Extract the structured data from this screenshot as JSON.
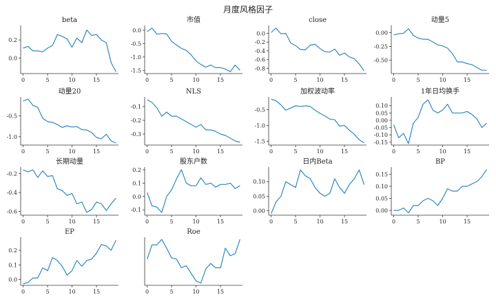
{
  "title": "月度风格因子",
  "series_color": "#2e86c1",
  "chart_data": [
    {
      "type": "line",
      "title": "beta",
      "x": [
        0,
        1,
        2,
        3,
        4,
        5,
        6,
        7,
        8,
        9,
        10,
        11,
        12,
        13,
        14,
        15,
        16,
        17,
        18,
        19
      ],
      "values": [
        0.11,
        0.13,
        0.08,
        0.08,
        0.07,
        0.11,
        0.14,
        0.26,
        0.24,
        0.21,
        0.12,
        0.22,
        0.17,
        0.31,
        0.25,
        0.26,
        0.2,
        0.17,
        -0.05,
        -0.15
      ],
      "yticks": [
        0.0,
        0.2
      ],
      "xticks": [
        0,
        5,
        10,
        15
      ],
      "ylim": [
        -0.17,
        0.36
      ],
      "xlim": [
        -0.5,
        19.5
      ]
    },
    {
      "type": "line",
      "title": "市值",
      "x": [
        0,
        1,
        2,
        3,
        4,
        5,
        6,
        7,
        8,
        9,
        10,
        11,
        12,
        13,
        14,
        15,
        16,
        17,
        18,
        19
      ],
      "values": [
        -0.05,
        0.08,
        -0.15,
        -0.12,
        -0.14,
        -0.42,
        -0.55,
        -0.68,
        -0.75,
        -0.92,
        -1.15,
        -1.28,
        -1.38,
        -1.3,
        -1.4,
        -1.4,
        -1.45,
        -1.55,
        -1.3,
        -1.5
      ],
      "yticks": [
        0.0,
        -0.5,
        -1.0,
        -1.5
      ],
      "xticks": [
        0,
        5,
        10,
        15
      ],
      "ylim": [
        -1.62,
        0.18
      ],
      "xlim": [
        -0.5,
        19.5
      ]
    },
    {
      "type": "line",
      "title": "close",
      "x": [
        0,
        1,
        2,
        3,
        4,
        5,
        6,
        7,
        8,
        9,
        10,
        11,
        12,
        13,
        14,
        15,
        16,
        17,
        18,
        19
      ],
      "values": [
        0.02,
        0.12,
        -0.01,
        0.0,
        -0.22,
        -0.28,
        -0.37,
        -0.38,
        -0.27,
        -0.25,
        -0.35,
        -0.42,
        -0.43,
        -0.36,
        -0.5,
        -0.45,
        -0.54,
        -0.58,
        -0.7,
        -0.86
      ],
      "yticks": [
        0.0,
        -0.2,
        -0.4,
        -0.6,
        -0.8
      ],
      "xticks": [
        0,
        5,
        10,
        15
      ],
      "ylim": [
        -0.92,
        0.18
      ],
      "xlim": [
        -0.5,
        19.5
      ]
    },
    {
      "type": "line",
      "title": "动量5",
      "x": [
        0,
        1,
        2,
        3,
        4,
        5,
        6,
        7,
        8,
        9,
        10,
        11,
        12,
        13,
        14,
        15,
        16,
        17,
        18,
        19
      ],
      "values": [
        -0.04,
        -0.02,
        -0.01,
        0.07,
        -0.05,
        -0.1,
        -0.12,
        -0.12,
        -0.17,
        -0.22,
        -0.24,
        -0.28,
        -0.38,
        -0.53,
        -0.53,
        -0.56,
        -0.58,
        -0.63,
        -0.68,
        -0.68
      ],
      "yticks": [
        0.0,
        -0.25,
        -0.5
      ],
      "xticks": [
        0,
        5,
        10,
        15
      ],
      "ylim": [
        -0.74,
        0.13
      ],
      "xlim": [
        -0.5,
        19.5
      ]
    },
    {
      "type": "line",
      "title": "动量20",
      "x": [
        0,
        1,
        2,
        3,
        4,
        5,
        6,
        7,
        8,
        9,
        10,
        11,
        12,
        13,
        14,
        15,
        16,
        17,
        18,
        19
      ],
      "values": [
        -0.15,
        -0.1,
        -0.25,
        -0.3,
        -0.56,
        -0.64,
        -0.66,
        -0.71,
        -0.78,
        -0.74,
        -0.77,
        -0.76,
        -0.83,
        -0.84,
        -0.9,
        -1.02,
        -1.05,
        -0.94,
        -1.1,
        -1.15
      ],
      "yticks": [
        -0.5,
        -1.0
      ],
      "xticks": [
        0,
        5,
        10,
        15
      ],
      "ylim": [
        -1.2,
        -0.05
      ],
      "xlim": [
        -0.5,
        19.5
      ]
    },
    {
      "type": "line",
      "title": "NLS",
      "x": [
        0,
        1,
        2,
        3,
        4,
        5,
        6,
        7,
        8,
        9,
        10,
        11,
        12,
        13,
        14,
        15,
        16,
        17,
        18,
        19
      ],
      "values": [
        -0.05,
        -0.07,
        -0.11,
        -0.17,
        -0.14,
        -0.17,
        -0.17,
        -0.19,
        -0.21,
        -0.23,
        -0.25,
        -0.23,
        -0.27,
        -0.27,
        -0.28,
        -0.3,
        -0.31,
        -0.33,
        -0.35,
        -0.36
      ],
      "yticks": [
        -0.1,
        -0.2,
        -0.3
      ],
      "xticks": [
        0,
        5,
        10,
        15
      ],
      "ylim": [
        -0.38,
        -0.03
      ],
      "xlim": [
        -0.5,
        19.5
      ]
    },
    {
      "type": "line",
      "title": "加权波动率",
      "x": [
        0,
        1,
        2,
        3,
        4,
        5,
        6,
        7,
        8,
        9,
        10,
        11,
        12,
        13,
        14,
        15,
        16,
        17,
        18,
        19
      ],
      "values": [
        -0.17,
        -0.22,
        -0.35,
        -0.52,
        -0.45,
        -0.38,
        -0.4,
        -0.38,
        -0.4,
        -0.52,
        -0.62,
        -0.7,
        -0.8,
        -0.82,
        -1.02,
        -1.0,
        -1.15,
        -1.28,
        -1.45,
        -1.55
      ],
      "yticks": [
        -0.5,
        -1.0,
        -1.5
      ],
      "xticks": [
        0,
        5,
        10,
        15
      ],
      "ylim": [
        -1.62,
        -0.1
      ],
      "xlim": [
        -0.5,
        19.5
      ]
    },
    {
      "type": "line",
      "title": "1年日均换手",
      "x": [
        0,
        1,
        2,
        3,
        4,
        5,
        6,
        7,
        8,
        9,
        10,
        11,
        12,
        13,
        14,
        15,
        16,
        17,
        18,
        19
      ],
      "values": [
        -0.03,
        -0.12,
        -0.09,
        -0.16,
        -0.02,
        0.02,
        0.11,
        0.14,
        0.07,
        0.05,
        0.07,
        0.11,
        0.05,
        0.05,
        0.05,
        0.06,
        0.04,
        0.01,
        -0.05,
        -0.02
      ],
      "yticks": [
        0.1,
        0.05,
        0.0,
        -0.05,
        -0.1,
        -0.15
      ],
      "xticks": [
        0,
        5,
        10,
        15
      ],
      "ylim": [
        -0.17,
        0.16
      ],
      "xlim": [
        -0.5,
        19.5
      ]
    },
    {
      "type": "line",
      "title": "长期动量",
      "x": [
        0,
        1,
        2,
        3,
        4,
        5,
        6,
        7,
        8,
        9,
        10,
        11,
        12,
        13,
        14,
        15,
        16,
        17,
        18,
        19
      ],
      "values": [
        -0.16,
        -0.18,
        -0.16,
        -0.24,
        -0.17,
        -0.23,
        -0.22,
        -0.36,
        -0.38,
        -0.43,
        -0.41,
        -0.52,
        -0.5,
        -0.61,
        -0.58,
        -0.5,
        -0.52,
        -0.59,
        -0.52,
        -0.46
      ],
      "yticks": [
        -0.2,
        -0.4,
        -0.6
      ],
      "xticks": [
        0,
        5,
        10,
        15
      ],
      "ylim": [
        -0.64,
        -0.13
      ],
      "xlim": [
        -0.5,
        19.5
      ]
    },
    {
      "type": "line",
      "title": "股东户数",
      "x": [
        0,
        1,
        2,
        3,
        4,
        5,
        6,
        7,
        8,
        9,
        10,
        11,
        12,
        13,
        14,
        15,
        16,
        17,
        18,
        19
      ],
      "values": [
        0.03,
        -0.07,
        -0.08,
        -0.12,
        0.0,
        0.05,
        0.13,
        0.2,
        0.1,
        0.08,
        0.08,
        0.14,
        0.09,
        0.1,
        0.07,
        0.09,
        0.09,
        0.1,
        0.06,
        0.08
      ],
      "yticks": [
        0.2,
        0.1,
        0.0,
        -0.1
      ],
      "xticks": [
        0,
        5,
        10,
        15
      ],
      "ylim": [
        -0.14,
        0.22
      ],
      "xlim": [
        -0.5,
        19.5
      ]
    },
    {
      "type": "line",
      "title": "日内Beta",
      "x": [
        0,
        1,
        2,
        3,
        4,
        5,
        6,
        7,
        8,
        9,
        10,
        11,
        12,
        13,
        14,
        15,
        16,
        17,
        18,
        19
      ],
      "values": [
        -0.01,
        0.03,
        0.05,
        0.1,
        0.09,
        0.08,
        0.14,
        0.12,
        0.11,
        0.08,
        0.06,
        0.05,
        0.06,
        0.11,
        0.08,
        0.06,
        0.09,
        0.11,
        0.14,
        0.09
      ],
      "yticks": [
        0.1,
        0.05,
        0.0
      ],
      "xticks": [
        0,
        5,
        10,
        15
      ],
      "ylim": [
        -0.015,
        0.15
      ],
      "xlim": [
        -0.5,
        19.5
      ]
    },
    {
      "type": "line",
      "title": "BP",
      "x": [
        0,
        1,
        2,
        3,
        4,
        5,
        6,
        7,
        8,
        9,
        10,
        11,
        12,
        13,
        14,
        15,
        16,
        17,
        18,
        19
      ],
      "values": [
        0.0,
        0.0,
        0.01,
        -0.01,
        0.02,
        0.02,
        0.04,
        0.05,
        0.04,
        0.02,
        0.05,
        0.09,
        0.08,
        0.08,
        0.1,
        0.1,
        0.11,
        0.12,
        0.14,
        0.17
      ],
      "yticks": [
        0.15,
        0.1,
        0.05,
        0.0
      ],
      "xticks": [
        0,
        5,
        10,
        15
      ],
      "ylim": [
        -0.02,
        0.18
      ],
      "xlim": [
        -0.5,
        19.5
      ]
    },
    {
      "type": "line",
      "title": "EP",
      "x": [
        0,
        1,
        2,
        3,
        4,
        5,
        6,
        7,
        8,
        9,
        10,
        11,
        12,
        13,
        14,
        15,
        16,
        17,
        18,
        19
      ],
      "values": [
        -0.03,
        -0.02,
        0.01,
        0.01,
        0.08,
        0.06,
        0.15,
        0.13,
        0.09,
        0.03,
        0.06,
        0.13,
        0.09,
        0.13,
        0.14,
        0.18,
        0.24,
        0.23,
        0.2,
        0.27
      ],
      "yticks": [
        0.2,
        0.1,
        0.0
      ],
      "xticks": [
        0,
        5,
        10,
        15
      ],
      "ylim": [
        -0.04,
        0.29
      ],
      "xlim": [
        -0.5,
        19.5
      ]
    },
    {
      "type": "line",
      "title": "Roe",
      "x": [
        0,
        1,
        2,
        3,
        4,
        5,
        6,
        7,
        8,
        9,
        10,
        11,
        12,
        13,
        14,
        15,
        16,
        17,
        18,
        19
      ],
      "values": [
        0.05,
        0.18,
        0.18,
        0.23,
        0.15,
        0.06,
        0.05,
        -0.03,
        -0.01,
        -0.08,
        -0.15,
        -0.17,
        -0.04,
        0.01,
        -0.03,
        -0.03,
        0.15,
        0.08,
        0.1,
        0.23
      ],
      "yticks": [],
      "xticks": [
        0,
        5,
        10,
        15
      ],
      "ylim": [
        -0.19,
        0.25
      ],
      "xlim": [
        -0.5,
        19.5
      ]
    }
  ]
}
